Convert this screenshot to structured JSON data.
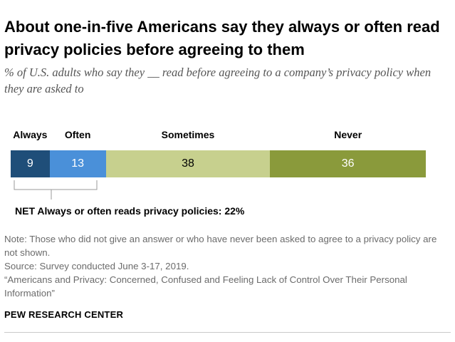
{
  "title": "About one-in-five Americans say they always or often read privacy policies before agreeing to them",
  "subtitle": "% of U.S. adults who say they __ read before agreeing to a company’s privacy policy when they are asked to",
  "chart_data": {
    "type": "bar",
    "orientation": "horizontal-stacked",
    "categories": [
      "Always",
      "Often",
      "Sometimes",
      "Never"
    ],
    "values": [
      9,
      13,
      38,
      36
    ],
    "value_labels": [
      "9",
      "13",
      "38",
      "36"
    ],
    "colors": [
      "#1f4e79",
      "#4a90d9",
      "#c7d08e",
      "#8a9a3b"
    ],
    "label_colors": [
      "#ffffff",
      "#ffffff",
      "#000000",
      "#ffffff"
    ],
    "xlim": [
      0,
      100
    ],
    "legend": "top",
    "net": {
      "label": "NET Always or often reads privacy policies: 22%",
      "value": 22,
      "spans": [
        "Always",
        "Often"
      ]
    }
  },
  "notes": {
    "note": "Note: Those who did not give an answer or who have never been asked to agree to a privacy policy are not shown.",
    "source": "Source: Survey conducted June 3-17, 2019.",
    "report": "“Americans and Privacy: Concerned, Confused and Feeling Lack of Control Over Their Personal Information”"
  },
  "org": "PEW RESEARCH CENTER"
}
